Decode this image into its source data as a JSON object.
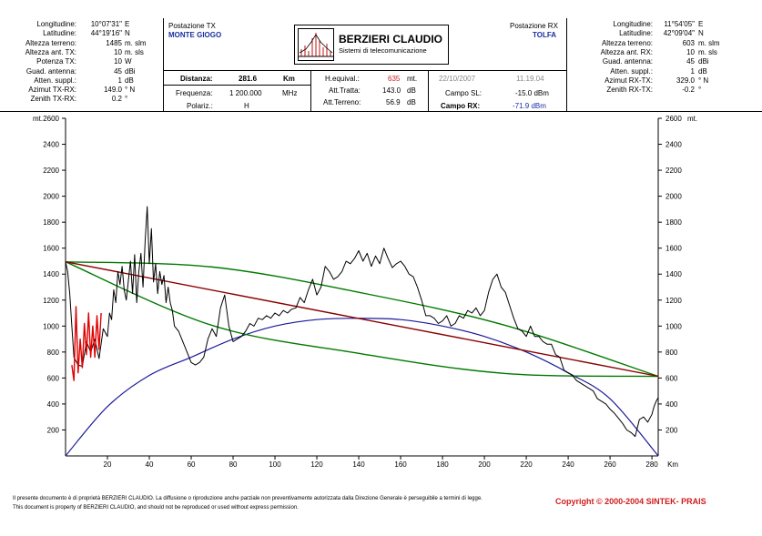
{
  "tx": {
    "section_title": "Postazione TX",
    "station": "MONTE GIOGO",
    "rows": [
      {
        "label": "Longitudine:",
        "value": "10°07'31\"",
        "unit": "E"
      },
      {
        "label": "Latitudine:",
        "value": "44°19'16\"",
        "unit": "N"
      },
      {
        "label": "Altezza terreno:",
        "value": "1485",
        "unit": "m. slm"
      },
      {
        "label": "Altezza ant. TX:",
        "value": "10",
        "unit": "m. sls"
      },
      {
        "label": "Potenza TX:",
        "value": "10",
        "unit": "W"
      },
      {
        "label": "Guad. antenna:",
        "value": "45",
        "unit": "dBi"
      },
      {
        "label": "Atten. suppl.:",
        "value": "1",
        "unit": "dB"
      },
      {
        "label": "Azimut TX-RX:",
        "value": "149.0",
        "unit": "° N"
      },
      {
        "label": "Zenith TX-RX:",
        "value": "0.2",
        "unit": "°"
      }
    ]
  },
  "rx": {
    "section_title": "Postazione RX",
    "station": "TOLFA",
    "rows": [
      {
        "label": "Longitudine:",
        "value": "11°54'05\"",
        "unit": "E"
      },
      {
        "label": "Latitudine:",
        "value": "42°09'04\"",
        "unit": "N"
      },
      {
        "label": "Altezza terreno:",
        "value": "603",
        "unit": "m. slm"
      },
      {
        "label": "Altezza ant. RX:",
        "value": "10",
        "unit": "m. sls"
      },
      {
        "label": "Guad. antenna:",
        "value": "45",
        "unit": "dBi"
      },
      {
        "label": "Atten. suppl.:",
        "value": "1",
        "unit": "dB"
      },
      {
        "label": "Azimut RX-TX:",
        "value": "329.0",
        "unit": "° N"
      },
      {
        "label": "Zenith RX-TX:",
        "value": "-0.2",
        "unit": "°"
      }
    ]
  },
  "logo": {
    "name": "BERZIERI CLAUDIO",
    "subtitle": "Sistemi di telecomunicazione"
  },
  "link": {
    "distance_label": "Distanza:",
    "distance_value": "281.6",
    "distance_unit": "Km",
    "freq_label": "Frequenza:",
    "freq_value": "1 200.000",
    "freq_unit": "MHz",
    "pol_label": "Polariz.:",
    "pol_value": "H",
    "heq_label": "H.equival.:",
    "heq_value": "635",
    "heq_unit": "mt.",
    "att_tratta_label": "Att.Tratta:",
    "att_tratta_value": "143.0",
    "att_tratta_unit": "dB",
    "att_terreno_label": "Att.Terreno:",
    "att_terreno_value": "56.9",
    "att_terreno_unit": "dB",
    "date": "22/10/2007",
    "time": "11.19.04",
    "campo_sl_label": "Campo SL:",
    "campo_sl_value": "-15.0 dBm",
    "campo_rx_label": "Campo RX:",
    "campo_rx_value": "-71.9 dBm"
  },
  "footer": {
    "line1": "Il presente documento è di proprietà BERZIERI CLAUDIO. La diffusione o riproduzione anche parziale non preventivamente autorizzata dalla Direzione Generale è perseguibile a termini di legge.",
    "line2": "This document is property of BERZIERI CLAUDIO, and should not be reproduced or used without express permission.",
    "copyright": "Copyright © 2000-2004 SINTEK- PRAIS"
  },
  "chart_data": {
    "type": "line",
    "x_unit": "Km",
    "y_unit_left": "mt.",
    "y_unit_right": "mt.",
    "xlim": [
      0,
      283
    ],
    "ylim": [
      0,
      2600
    ],
    "x_ticks": [
      20,
      40,
      60,
      80,
      100,
      120,
      140,
      160,
      180,
      200,
      220,
      240,
      260,
      280
    ],
    "y_ticks": [
      200,
      400,
      600,
      800,
      1000,
      1200,
      1400,
      1600,
      1800,
      2000,
      2200,
      2400,
      2600
    ],
    "colors": {
      "terrain": "#000000",
      "los": "#8b0000",
      "fresnel": "#007a00",
      "earth": "#1a1a9a",
      "reflection": "#e00000"
    },
    "series": [
      {
        "key": "terrain",
        "x": [
          0,
          1,
          2,
          3,
          4,
          6,
          8,
          10,
          12,
          14,
          16,
          18,
          20,
          21,
          22,
          23,
          24,
          25,
          26,
          27,
          28,
          29,
          30,
          31,
          32,
          33,
          34,
          35,
          36,
          37,
          38,
          39,
          40,
          41,
          42,
          43,
          44,
          45,
          46,
          47,
          48,
          49,
          50,
          51,
          52,
          53,
          54,
          56,
          58,
          60,
          62,
          64,
          66,
          68,
          70,
          72,
          74,
          76,
          78,
          80,
          82,
          84,
          86,
          88,
          90,
          92,
          94,
          96,
          98,
          100,
          102,
          104,
          106,
          108,
          110,
          112,
          114,
          116,
          118,
          120,
          122,
          124,
          126,
          128,
          130,
          132,
          134,
          136,
          138,
          140,
          142,
          144,
          146,
          148,
          150,
          152,
          154,
          156,
          158,
          160,
          162,
          164,
          166,
          168,
          170,
          172,
          174,
          176,
          178,
          180,
          182,
          184,
          186,
          188,
          190,
          192,
          194,
          196,
          198,
          200,
          202,
          204,
          206,
          208,
          210,
          212,
          214,
          216,
          218,
          220,
          222,
          224,
          226,
          228,
          230,
          232,
          234,
          236,
          238,
          240,
          242,
          244,
          246,
          248,
          250,
          252,
          254,
          256,
          258,
          260,
          262,
          264,
          266,
          268,
          270,
          272,
          274,
          276,
          278,
          280,
          281,
          282,
          283
        ],
        "y": [
          1495,
          1420,
          1250,
          1000,
          760,
          700,
          690,
          880,
          800,
          900,
          750,
          980,
          920,
          1100,
          1050,
          1280,
          1180,
          1420,
          1320,
          1460,
          1280,
          1200,
          1350,
          1500,
          1250,
          1550,
          1180,
          1420,
          1560,
          1300,
          1650,
          1920,
          1480,
          1750,
          1340,
          1480,
          1250,
          1420,
          1320,
          1390,
          1180,
          1300,
          1180,
          1120,
          1000,
          980,
          960,
          880,
          800,
          720,
          700,
          720,
          760,
          900,
          980,
          920,
          1140,
          1240,
          1000,
          880,
          900,
          920,
          960,
          1020,
          1000,
          1060,
          1050,
          1080,
          1060,
          1100,
          1080,
          1120,
          1100,
          1130,
          1140,
          1220,
          1180,
          1280,
          1360,
          1240,
          1300,
          1460,
          1420,
          1360,
          1380,
          1420,
          1500,
          1480,
          1520,
          1580,
          1500,
          1560,
          1460,
          1540,
          1480,
          1600,
          1520,
          1450,
          1480,
          1500,
          1460,
          1400,
          1380,
          1300,
          1200,
          1080,
          1080,
          1060,
          1020,
          1040,
          1080,
          1000,
          1020,
          1080,
          1060,
          1120,
          1100,
          1140,
          1080,
          1120,
          1260,
          1360,
          1400,
          1300,
          1260,
          1160,
          1060,
          980,
          960,
          920,
          1000,
          920,
          920,
          880,
          860,
          860,
          780,
          760,
          660,
          640,
          620,
          580,
          560,
          540,
          520,
          500,
          440,
          420,
          400,
          360,
          330,
          290,
          250,
          200,
          180,
          150,
          280,
          300,
          260,
          320,
          380,
          420,
          450
        ]
      },
      {
        "key": "los",
        "x": [
          0,
          283
        ],
        "y": [
          1495,
          613
        ]
      },
      {
        "key": "fresnel_top",
        "x": [
          0,
          70,
          140,
          210,
          283
        ],
        "y": [
          1495,
          1455,
          1260,
          1005,
          613
        ]
      },
      {
        "key": "fresnel_bottom",
        "x": [
          0,
          70,
          140,
          210,
          283
        ],
        "y": [
          1495,
          1005,
          790,
          635,
          613
        ]
      },
      {
        "key": "earth",
        "x": [
          0,
          20,
          40,
          60,
          80,
          100,
          120,
          140,
          160,
          180,
          200,
          220,
          240,
          260,
          283
        ],
        "y": [
          0,
          380,
          620,
          760,
          900,
          1000,
          1050,
          1060,
          1050,
          1000,
          920,
          800,
          640,
          440,
          0
        ]
      },
      {
        "key": "reflection",
        "x": [
          3,
          4,
          5,
          6,
          7,
          8,
          9,
          10,
          11,
          12,
          13,
          14,
          15,
          16,
          17
        ],
        "y": [
          700,
          580,
          1150,
          640,
          900,
          680,
          1020,
          780,
          1100,
          760,
          1000,
          760,
          1080,
          820,
          1100
        ]
      }
    ]
  }
}
